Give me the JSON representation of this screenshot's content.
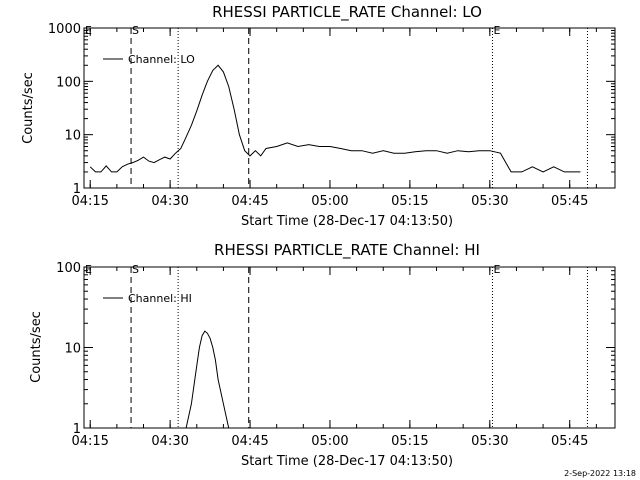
{
  "footer": {
    "timestamp": "2-Sep-2022 13:18"
  },
  "chart_data": [
    {
      "type": "line",
      "title": "RHESSI PARTICLE_RATE Channel: LO",
      "xlabel": "Start Time (28-Dec-17 04:13:50)",
      "ylabel": "Counts/sec",
      "yscale": "log",
      "ylim": [
        1,
        1000
      ],
      "xlim": [
        "04:13:50",
        "05:53:30"
      ],
      "x_ticks": [
        "04:15",
        "04:30",
        "04:45",
        "05:00",
        "05:15",
        "05:30",
        "05:45"
      ],
      "y_ticks": [
        "1",
        "10",
        "100",
        "1000"
      ],
      "legend": "top-left",
      "series": [
        {
          "name": "Channel: LO",
          "x": [
            "04:15",
            "04:16",
            "04:17",
            "04:18",
            "04:19",
            "04:20",
            "04:21",
            "04:22",
            "04:23",
            "04:24",
            "04:25",
            "04:26",
            "04:27",
            "04:28",
            "04:29",
            "04:30",
            "04:31",
            "04:32",
            "04:33",
            "04:34",
            "04:35",
            "04:36",
            "04:37",
            "04:38",
            "04:39",
            "04:40",
            "04:41",
            "04:42",
            "04:43",
            "04:44",
            "04:45",
            "04:46",
            "04:47",
            "04:48",
            "04:50",
            "04:52",
            "04:54",
            "04:56",
            "04:58",
            "05:00",
            "05:02",
            "05:04",
            "05:06",
            "05:08",
            "05:10",
            "05:12",
            "05:14",
            "05:16",
            "05:18",
            "05:20",
            "05:22",
            "05:24",
            "05:26",
            "05:28",
            "05:30",
            "05:32",
            "05:33",
            "05:34",
            "05:36",
            "05:38",
            "05:40",
            "05:42",
            "05:44",
            "05:46",
            "05:47"
          ],
          "y": [
            2.5,
            2,
            2,
            2.6,
            2,
            2,
            2.5,
            2.8,
            3,
            3.3,
            3.8,
            3.2,
            3,
            3.4,
            3.8,
            3.5,
            4.5,
            5.5,
            9,
            15,
            28,
            55,
            100,
            160,
            200,
            150,
            80,
            30,
            10,
            5,
            4,
            5,
            4,
            5.5,
            6,
            7,
            6,
            6.5,
            6,
            6,
            5.5,
            5,
            5,
            4.5,
            5,
            4.5,
            4.5,
            4.8,
            5,
            5,
            4.5,
            5,
            4.8,
            5,
            5,
            4.5,
            3,
            2,
            2,
            2.5,
            2,
            2.5,
            2,
            2,
            2
          ]
        }
      ],
      "markers": [
        {
          "label": "E",
          "time": "04:13:50",
          "style": "none"
        },
        {
          "label": "S",
          "time": "04:22:40",
          "style": "dashed"
        },
        {
          "label": "",
          "time": "04:31:30",
          "style": "dotted"
        },
        {
          "label": "",
          "time": "04:44:45",
          "style": "dashed"
        },
        {
          "label": "E",
          "time": "05:30:30",
          "style": "dotted"
        },
        {
          "label": "",
          "time": "05:48:20",
          "style": "dotted"
        }
      ]
    },
    {
      "type": "line",
      "title": "RHESSI PARTICLE_RATE Channel: HI",
      "xlabel": "Start Time (28-Dec-17 04:13:50)",
      "ylabel": "Counts/sec",
      "yscale": "log",
      "ylim": [
        1,
        100
      ],
      "xlim": [
        "04:13:50",
        "05:53:30"
      ],
      "x_ticks": [
        "04:15",
        "04:30",
        "04:45",
        "05:00",
        "05:15",
        "05:30",
        "05:45"
      ],
      "y_ticks": [
        "1",
        "10",
        "100"
      ],
      "legend": "top-left",
      "series": [
        {
          "name": "Channel: HI",
          "x": [
            "04:33:00",
            "04:34:00",
            "04:35:00",
            "04:35:30",
            "04:36:00",
            "04:36:30",
            "04:37:00",
            "04:37:30",
            "04:38:00",
            "04:38:30",
            "04:39:00",
            "04:40:00",
            "04:41:00"
          ],
          "y": [
            1,
            2,
            6,
            10,
            14,
            16,
            15,
            13,
            10,
            7,
            4,
            2,
            1
          ]
        }
      ],
      "markers": [
        {
          "label": "E",
          "time": "04:13:50",
          "style": "none"
        },
        {
          "label": "S",
          "time": "04:22:40",
          "style": "dashed"
        },
        {
          "label": "",
          "time": "04:31:30",
          "style": "dotted"
        },
        {
          "label": "",
          "time": "04:44:45",
          "style": "dashed"
        },
        {
          "label": "E",
          "time": "05:30:30",
          "style": "dotted"
        },
        {
          "label": "",
          "time": "05:48:20",
          "style": "dotted"
        }
      ]
    }
  ]
}
